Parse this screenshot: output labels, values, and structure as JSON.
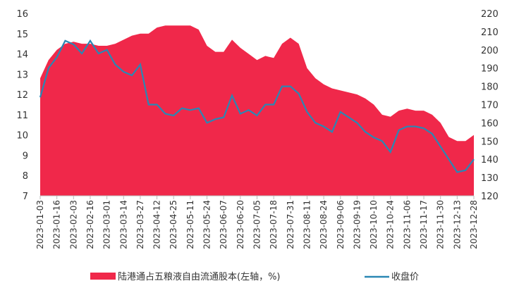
{
  "chart_data": {
    "type": "area_line",
    "categories": [
      "2023-01-03",
      null,
      "2023-01-16",
      null,
      "2023-02-03",
      null,
      "2023-02-16",
      null,
      "2023-03-01",
      null,
      "2023-03-14",
      null,
      "2023-03-27",
      null,
      "2023-04-12",
      null,
      "2023-04-25",
      null,
      "2023-05-11",
      null,
      "2023-05-24",
      null,
      "2023-06-07",
      null,
      "2023-06-20",
      null,
      "2023-07-05",
      null,
      "2023-07-18",
      null,
      "2023-07-31",
      null,
      "2023-08-11",
      null,
      "2023-08-24",
      null,
      "2023-09-06",
      null,
      "2023-09-19",
      null,
      "2023-10-10",
      null,
      "2023-10-24",
      null,
      "2023-11-06",
      null,
      "2023-11-17",
      null,
      "2023-11-30",
      null,
      "2023-12-13",
      null,
      "2023-12-28"
    ],
    "series": [
      {
        "name": "陆港通占五粮液自由流通股本(左轴，%)",
        "color": "#f0284a",
        "kind": "area",
        "values": [
          12.8,
          13.7,
          14.2,
          14.5,
          14.6,
          14.5,
          14.5,
          14.4,
          14.4,
          14.5,
          14.7,
          14.9,
          15.0,
          15.0,
          15.3,
          15.4,
          15.4,
          15.4,
          15.4,
          15.2,
          14.4,
          14.1,
          14.1,
          14.7,
          14.3,
          14.0,
          13.7,
          13.9,
          13.8,
          14.5,
          14.8,
          14.5,
          13.3,
          12.8,
          12.5,
          12.3,
          12.2,
          12.1,
          12.0,
          11.8,
          11.5,
          11.0,
          10.9,
          11.2,
          11.3,
          11.2,
          11.2,
          11.0,
          10.6,
          9.9,
          9.7,
          9.7,
          10.0
        ]
      },
      {
        "name": "收盘价",
        "color": "#2a87b4",
        "kind": "line",
        "axis": "y2",
        "values": [
          174,
          190,
          196,
          205,
          203,
          198,
          205,
          198,
          200,
          192,
          188,
          186,
          192,
          170,
          170,
          165,
          164,
          168,
          167,
          168,
          160,
          162,
          163,
          175,
          165,
          167,
          164,
          170,
          170,
          180,
          180,
          176,
          166,
          160,
          158,
          155,
          166,
          163,
          160,
          155,
          152,
          150,
          144,
          156,
          158,
          158,
          157,
          154,
          147,
          140,
          133,
          134,
          140
        ]
      }
    ],
    "ylim": [
      7,
      16
    ],
    "yticks": [
      7,
      8,
      9,
      10,
      11,
      12,
      13,
      14,
      15,
      16
    ],
    "y2lim": [
      120,
      220
    ],
    "y2ticks": [
      120,
      130,
      140,
      150,
      160,
      170,
      180,
      190,
      200,
      210,
      220
    ],
    "legend": "bottom"
  }
}
